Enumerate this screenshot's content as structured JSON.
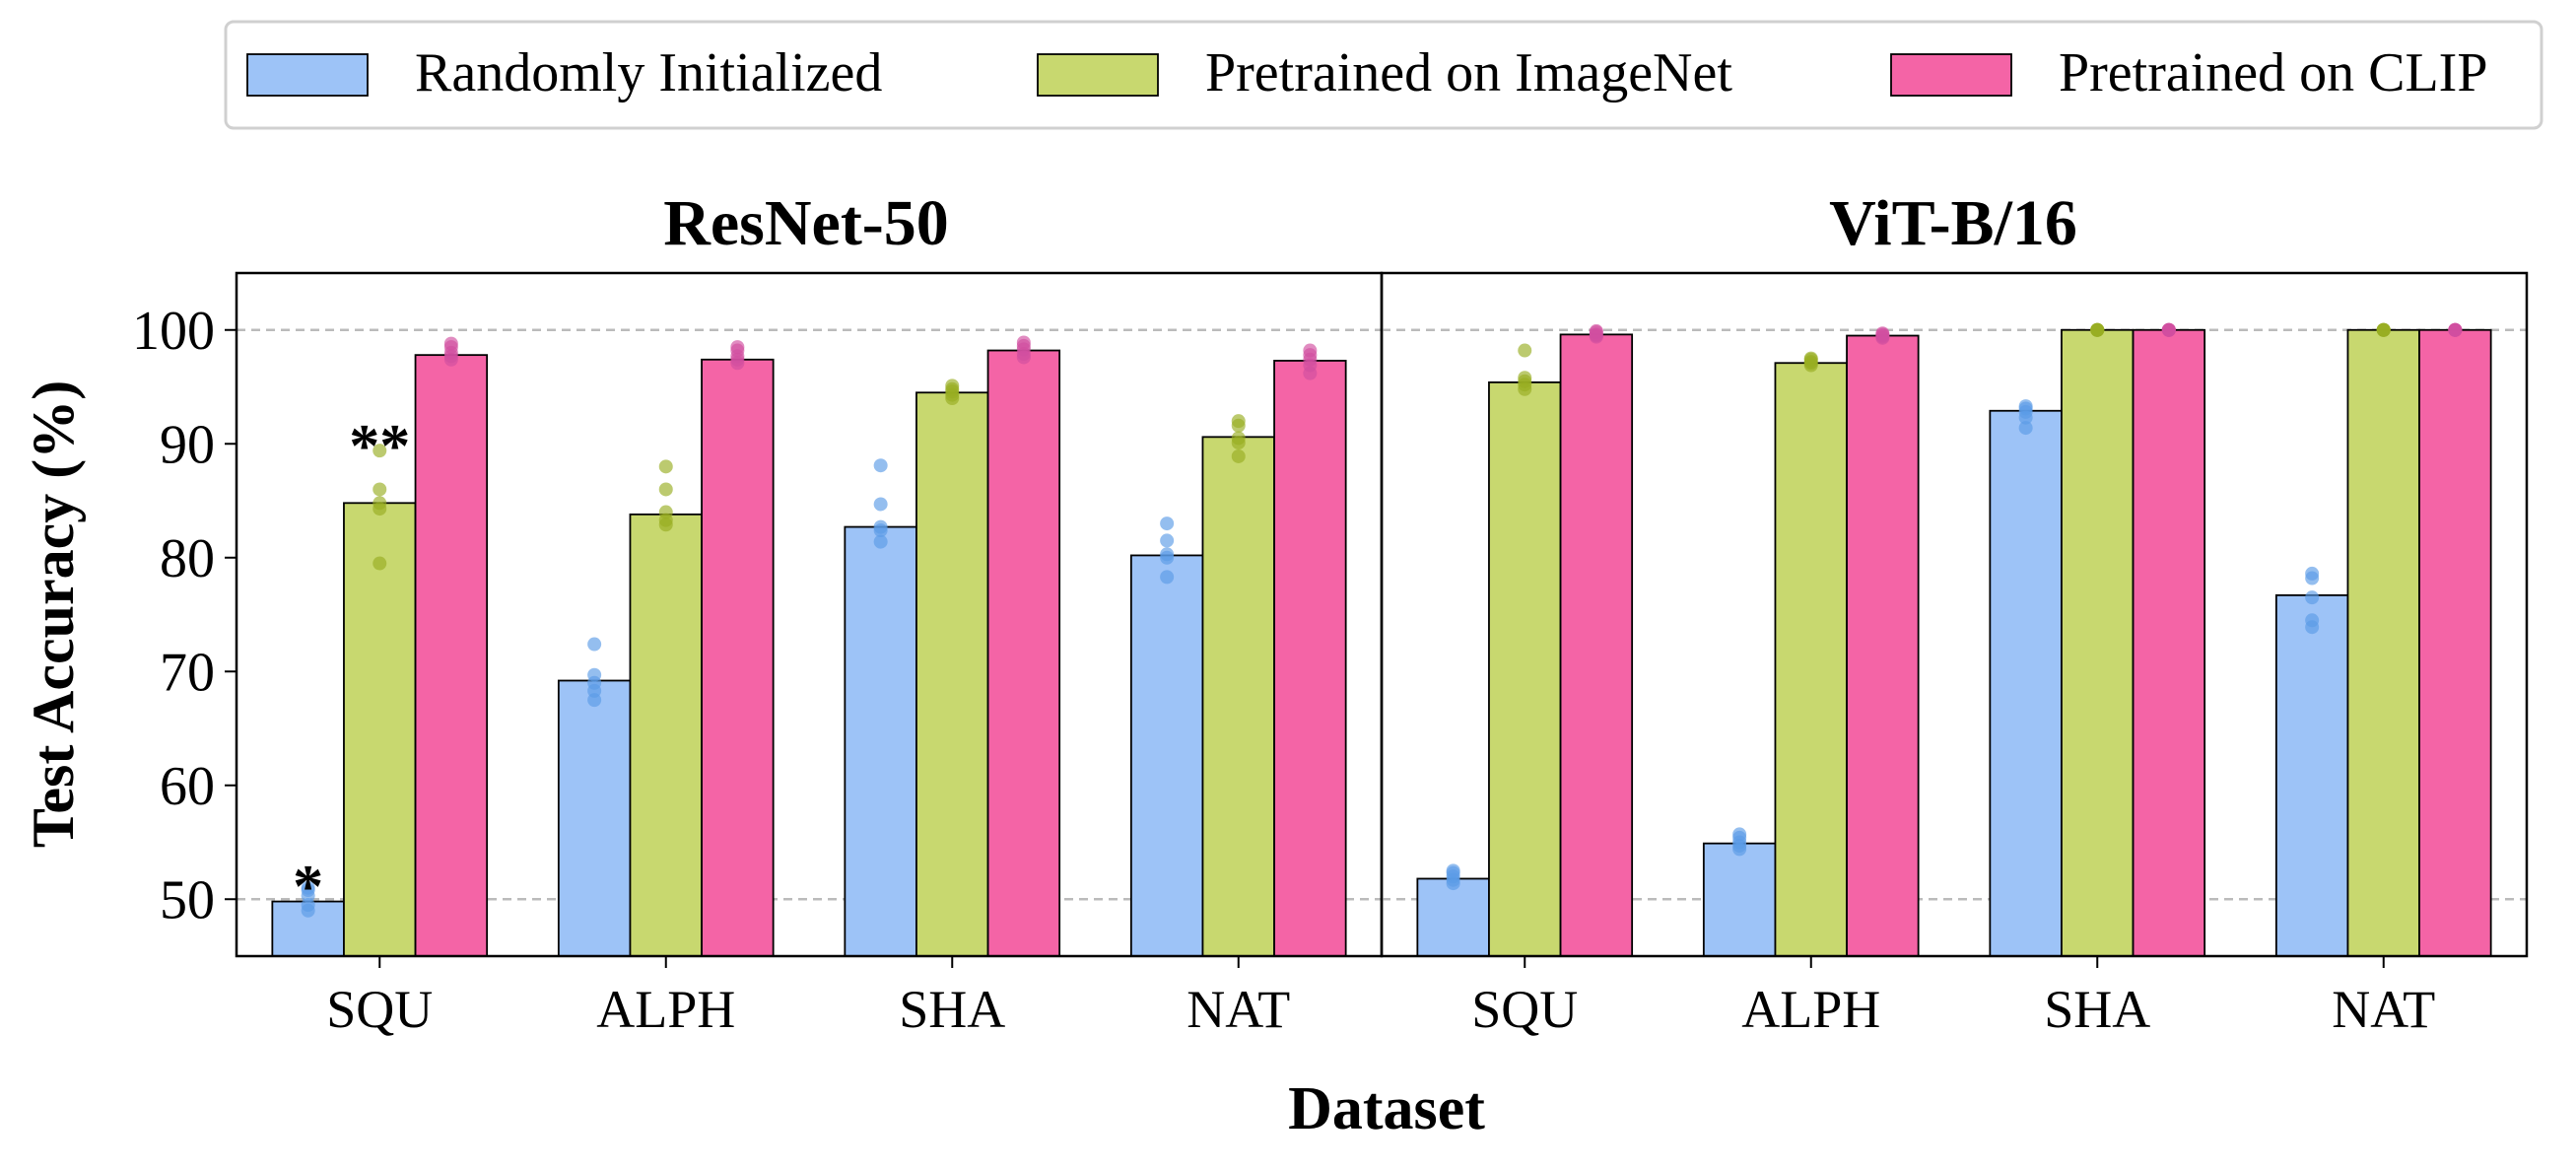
{
  "legend": {
    "placement": "top-center",
    "entries": [
      {
        "label": "Randomly Initialized",
        "color": "#9DC3F7"
      },
      {
        "label": "Pretrained on ImageNet",
        "color": "#C8D86F"
      },
      {
        "label": "Pretrained on CLIP",
        "color": "#F464A6"
      }
    ]
  },
  "xlabel": "Dataset",
  "ylabel": "Test Accuracy (%)",
  "colors": {
    "bar_edge": "#000000",
    "ref_line": "#BBBBBB",
    "dots": [
      "#5B9BE6",
      "#98AE22",
      "#D14FA0"
    ]
  },
  "chart_data": [
    {
      "type": "bar",
      "title": "ResNet-50",
      "categories": [
        "SQU",
        "ALPH",
        "SHA",
        "NAT"
      ],
      "ylim": [
        45,
        105
      ],
      "yticks": [
        50,
        60,
        70,
        80,
        90,
        100
      ],
      "reference_lines": [
        50,
        100
      ],
      "grid": false,
      "series": [
        {
          "name": "Randomly Initialized",
          "values": [
            49.8,
            69.2,
            82.7,
            80.2
          ],
          "points": [
            [
              49.0,
              49.5,
              50.3,
              50.8,
              51.0
            ],
            [
              67.5,
              68.3,
              69.0,
              69.7,
              72.4
            ],
            [
              81.4,
              82.4,
              82.7,
              84.7,
              88.1
            ],
            [
              78.3,
              80.0,
              80.3,
              81.5,
              83.0
            ]
          ]
        },
        {
          "name": "Pretrained on ImageNet",
          "values": [
            84.8,
            83.8,
            94.5,
            90.6
          ],
          "points": [
            [
              79.5,
              84.3,
              84.8,
              86.0,
              89.4
            ],
            [
              82.9,
              83.3,
              84.0,
              86.0,
              88.0
            ],
            [
              94.0,
              94.3,
              94.6,
              94.8,
              95.1
            ],
            [
              88.9,
              90.1,
              90.5,
              91.6,
              92.0
            ]
          ]
        },
        {
          "name": "Pretrained on CLIP",
          "values": [
            97.8,
            97.4,
            98.2,
            97.3
          ],
          "points": [
            [
              97.4,
              97.7,
              98.0,
              98.5,
              98.8
            ],
            [
              97.1,
              97.4,
              97.7,
              98.2,
              98.5
            ],
            [
              97.6,
              97.9,
              98.3,
              98.6,
              98.9
            ],
            [
              96.2,
              96.9,
              97.4,
              97.8,
              98.2
            ]
          ]
        }
      ],
      "annotations": [
        {
          "text": "*",
          "category": "SQU",
          "series": "Randomly Initialized",
          "y": 52.1
        },
        {
          "text": "**",
          "category": "SQU",
          "series": "Pretrained on ImageNet",
          "y": 90.8
        }
      ]
    },
    {
      "type": "bar",
      "title": "ViT-B/16",
      "categories": [
        "SQU",
        "ALPH",
        "SHA",
        "NAT"
      ],
      "ylim": [
        45,
        105
      ],
      "yticks": [
        50,
        60,
        70,
        80,
        90,
        100
      ],
      "reference_lines": [
        50,
        100
      ],
      "grid": false,
      "series": [
        {
          "name": "Randomly Initialized",
          "values": [
            51.8,
            54.9,
            92.9,
            76.7
          ],
          "points": [
            [
              51.4,
              51.7,
              52.0,
              52.3,
              52.5
            ],
            [
              54.4,
              54.7,
              55.0,
              55.4,
              55.7
            ],
            [
              91.4,
              92.3,
              92.8,
              93.1,
              93.3
            ],
            [
              73.9,
              74.5,
              76.5,
              78.2,
              78.6
            ]
          ]
        },
        {
          "name": "Pretrained on ImageNet",
          "values": [
            95.4,
            97.1,
            100.0,
            100.0
          ],
          "points": [
            [
              94.8,
              95.2,
              95.5,
              95.8,
              98.2
            ],
            [
              96.9,
              97.1,
              97.2,
              97.4,
              97.5
            ],
            [
              100.0,
              100.0,
              100.0,
              100.0,
              100.0
            ],
            [
              100.0,
              100.0,
              100.0,
              100.0,
              100.0
            ]
          ]
        },
        {
          "name": "Pretrained on CLIP",
          "values": [
            99.6,
            99.5,
            100.0,
            100.0
          ],
          "points": [
            [
              99.4,
              99.5,
              99.6,
              99.8,
              99.9
            ],
            [
              99.3,
              99.4,
              99.5,
              99.6,
              99.7
            ],
            [
              100.0,
              100.0,
              100.0,
              100.0,
              100.0
            ],
            [
              100.0,
              100.0,
              100.0,
              100.0,
              100.0
            ]
          ]
        }
      ],
      "annotations": []
    }
  ]
}
